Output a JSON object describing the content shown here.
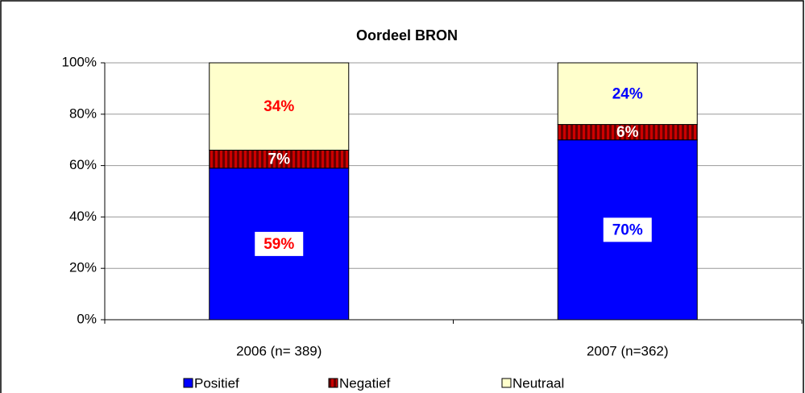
{
  "chart_data": {
    "type": "stacked_bar",
    "title": "Oordeel BRON",
    "categories": [
      "2006 (n= 389)",
      "2007 (n=362)"
    ],
    "series": [
      {
        "name": "Positief",
        "color": "#0000ff",
        "values": [
          59,
          70
        ],
        "value_labels": [
          "59%",
          "70%"
        ],
        "value_label_colors": [
          "#ff0000",
          "#0000ff"
        ],
        "value_label_box": true
      },
      {
        "name": "Negatief",
        "color": "#990000",
        "pattern": "vertical-stripes",
        "values": [
          7,
          6
        ],
        "value_labels": [
          "7%",
          "6%"
        ],
        "value_label_colors": [
          "#ffffff",
          "#ffffff"
        ],
        "value_label_box": false
      },
      {
        "name": "Neutraal",
        "color": "#ffffcc",
        "values": [
          34,
          24
        ],
        "value_labels": [
          "34%",
          "24%"
        ],
        "value_label_colors": [
          "#ff0000",
          "#0000ff"
        ],
        "value_label_box": false
      }
    ],
    "ylim": [
      0,
      100
    ],
    "yticks": [
      {
        "value": 0,
        "label": "0%"
      },
      {
        "value": 20,
        "label": "20%"
      },
      {
        "value": 40,
        "label": "40%"
      },
      {
        "value": 60,
        "label": "60%"
      },
      {
        "value": 80,
        "label": "80%"
      },
      {
        "value": 100,
        "label": "100%"
      }
    ],
    "grid": true,
    "legend": "bottom"
  }
}
